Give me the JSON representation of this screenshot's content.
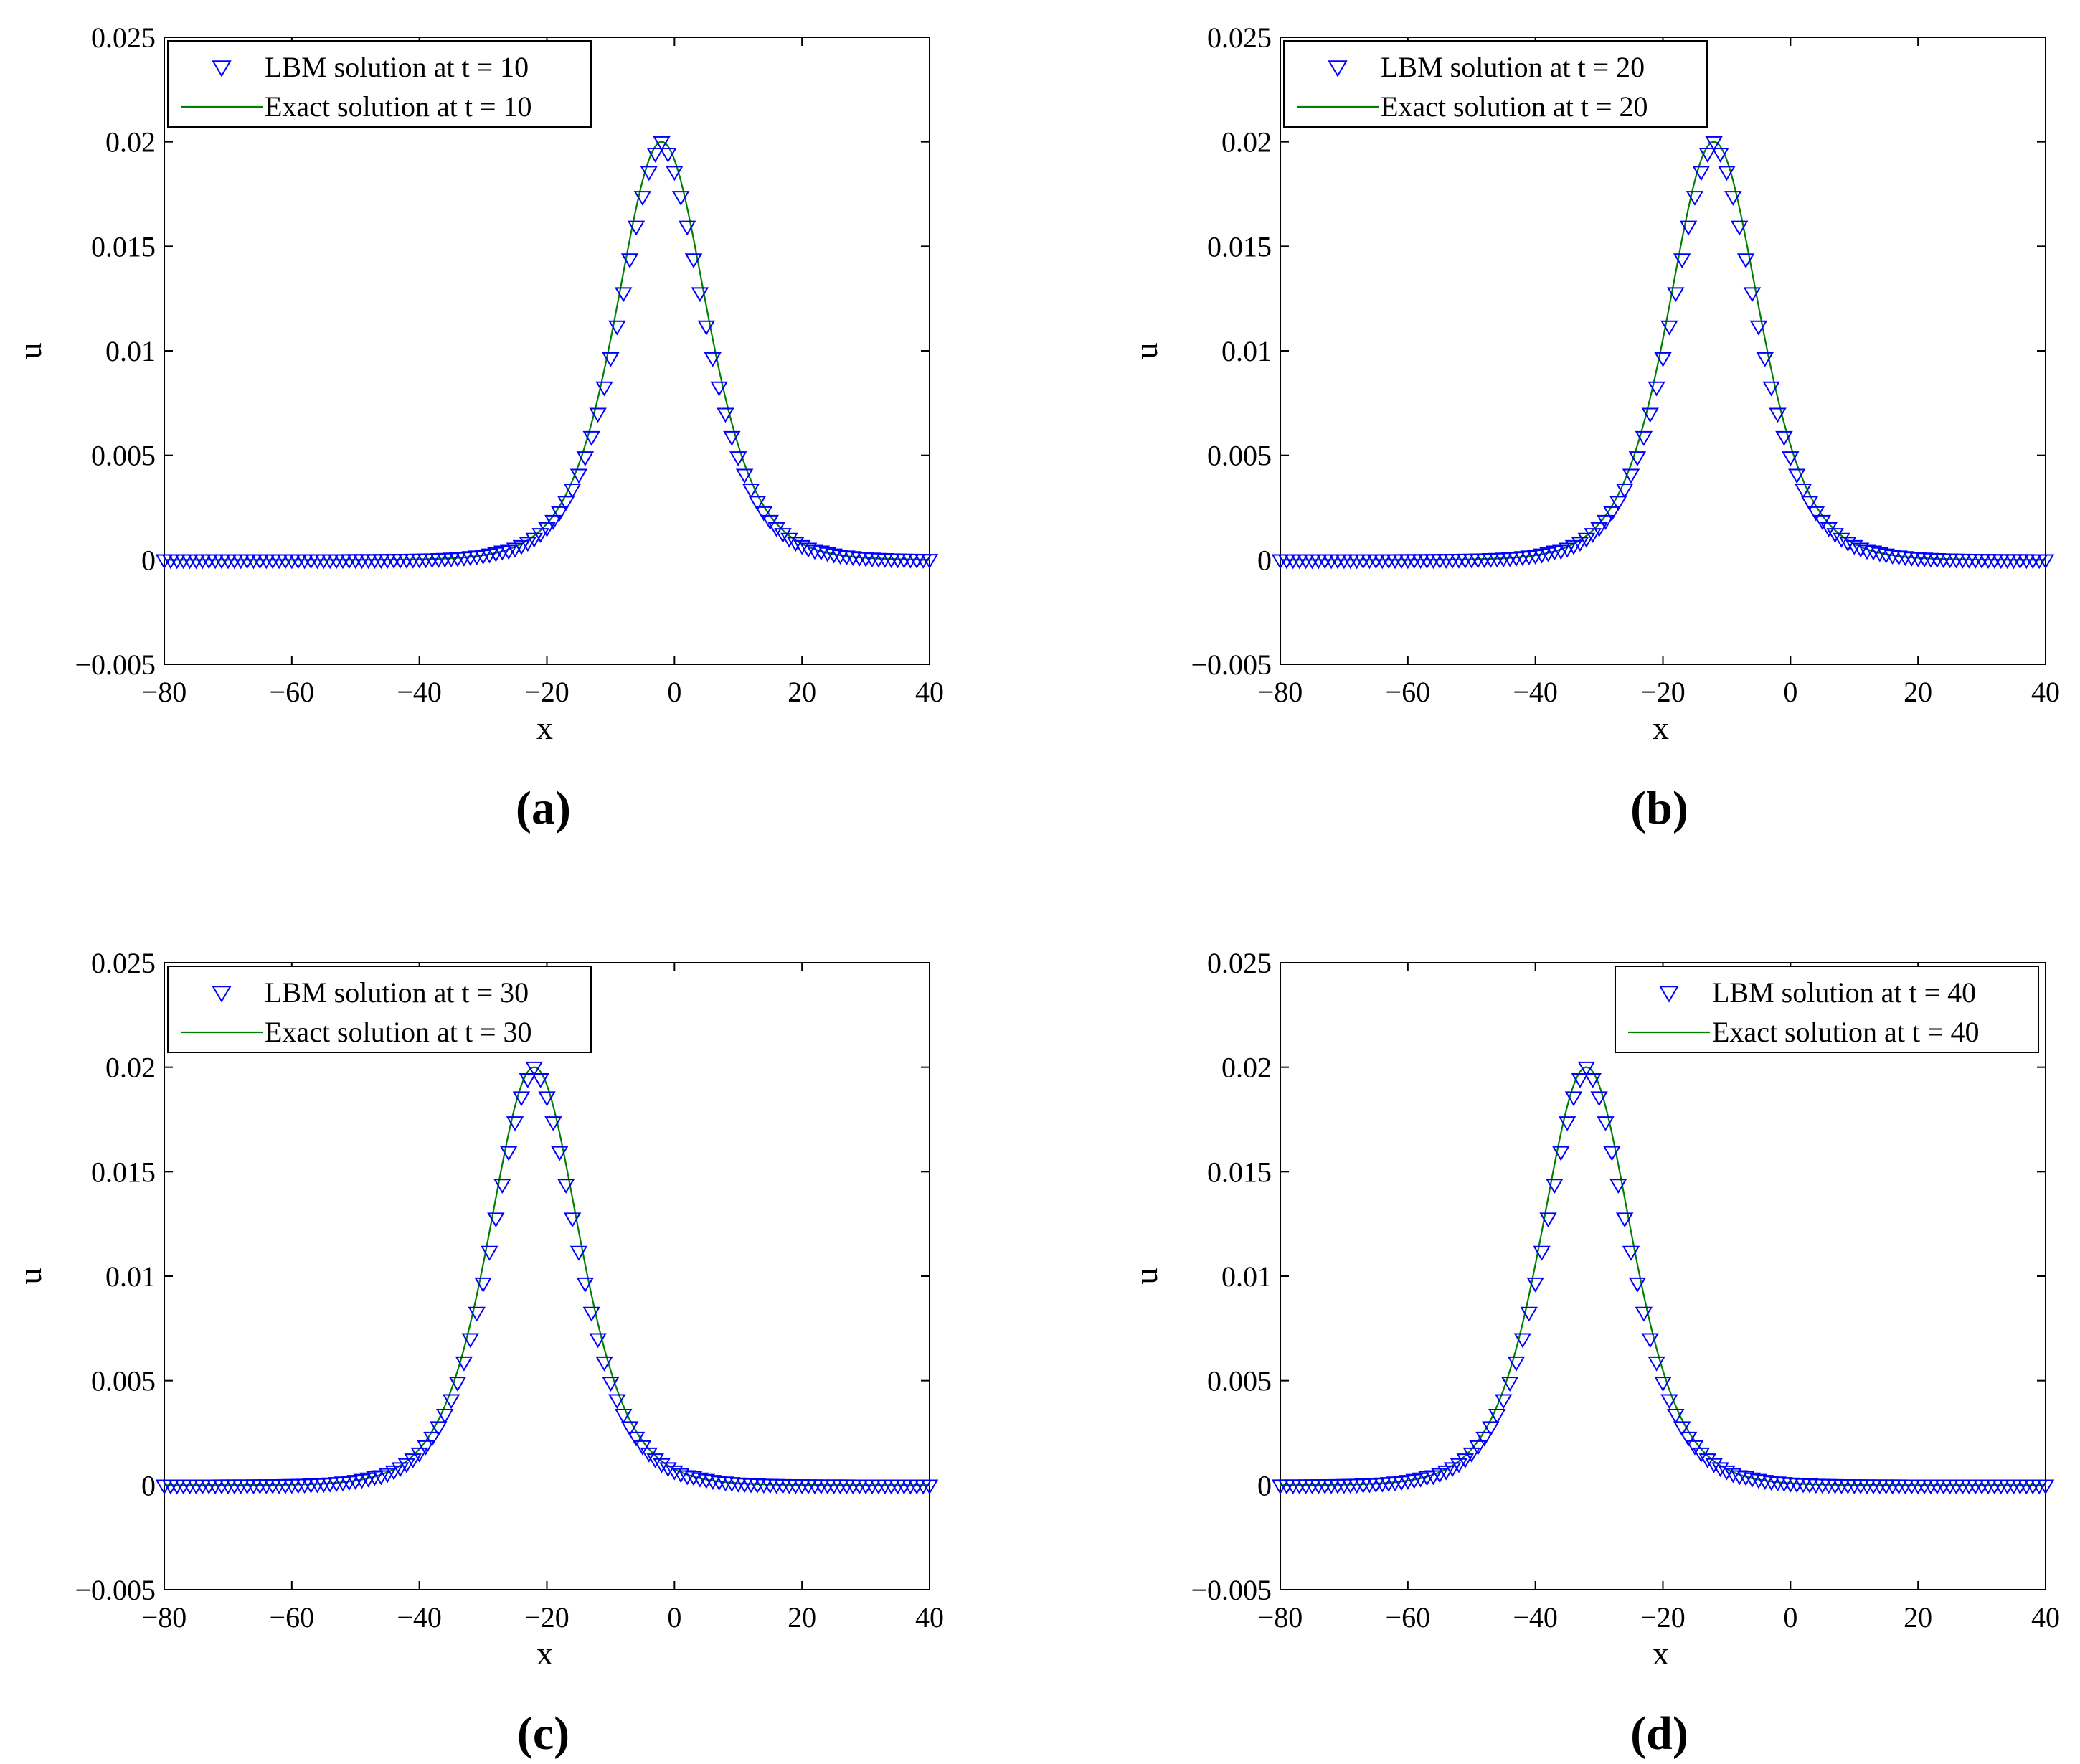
{
  "figure": {
    "panels": [
      {
        "label": "(a)",
        "t": 10,
        "peak_x": -2
      },
      {
        "label": "(b)",
        "t": 20,
        "peak_x": -12
      },
      {
        "label": "(c)",
        "t": 30,
        "peak_x": -22
      },
      {
        "label": "(d)",
        "t": 40,
        "peak_x": -32
      }
    ]
  },
  "colors": {
    "marker": "#0000ff",
    "line": "#008000",
    "axes": "#000000",
    "background": "#ffffff"
  },
  "chart_data": [
    {
      "type": "line",
      "panel": "(a)",
      "xlabel": "x",
      "ylabel": "u",
      "xlim": [
        -80,
        40
      ],
      "ylim": [
        -0.005,
        0.025
      ],
      "x_ticks": [
        -80,
        -60,
        -40,
        -20,
        0,
        20,
        40
      ],
      "x_tick_labels": [
        "−80",
        "−60",
        "−40",
        "−20",
        "0",
        "20",
        "40"
      ],
      "y_ticks": [
        -0.005,
        0,
        0.005,
        0.01,
        0.015,
        0.02,
        0.025
      ],
      "y_tick_labels": [
        "−0.005",
        "0",
        "0.005",
        "0.01",
        "0.015",
        "0.02",
        "0.025"
      ],
      "grid": false,
      "legend_position": "top-left",
      "series": [
        {
          "name": "LBM solution at t = 10",
          "style": "blue downward-triangle markers",
          "peak_x": -2,
          "peak_u": 0.02
        },
        {
          "name": "Exact solution at t = 10",
          "style": "green solid line",
          "peak_x": -2,
          "peak_u": 0.02
        }
      ]
    },
    {
      "type": "line",
      "panel": "(b)",
      "xlabel": "x",
      "ylabel": "u",
      "xlim": [
        -80,
        40
      ],
      "ylim": [
        -0.005,
        0.025
      ],
      "x_ticks": [
        -80,
        -60,
        -40,
        -20,
        0,
        20,
        40
      ],
      "x_tick_labels": [
        "−80",
        "−60",
        "−40",
        "−20",
        "0",
        "20",
        "40"
      ],
      "y_ticks": [
        -0.005,
        0,
        0.005,
        0.01,
        0.015,
        0.02,
        0.025
      ],
      "y_tick_labels": [
        "−0.005",
        "0",
        "0.005",
        "0.01",
        "0.015",
        "0.02",
        "0.025"
      ],
      "grid": false,
      "legend_position": "top-left",
      "series": [
        {
          "name": "LBM solution at t = 20",
          "style": "blue downward-triangle markers",
          "peak_x": -12,
          "peak_u": 0.02
        },
        {
          "name": "Exact solution at t = 20",
          "style": "green solid line",
          "peak_x": -12,
          "peak_u": 0.02
        }
      ]
    },
    {
      "type": "line",
      "panel": "(c)",
      "xlabel": "x",
      "ylabel": "u",
      "xlim": [
        -80,
        40
      ],
      "ylim": [
        -0.005,
        0.025
      ],
      "x_ticks": [
        -80,
        -60,
        -40,
        -20,
        0,
        20,
        40
      ],
      "x_tick_labels": [
        "−80",
        "−60",
        "−40",
        "−20",
        "0",
        "20",
        "40"
      ],
      "y_ticks": [
        -0.005,
        0,
        0.005,
        0.01,
        0.015,
        0.02,
        0.025
      ],
      "y_tick_labels": [
        "−0.005",
        "0",
        "0.005",
        "0.01",
        "0.015",
        "0.02",
        "0.025"
      ],
      "grid": false,
      "legend_position": "top-left",
      "series": [
        {
          "name": "LBM solution at t = 30",
          "style": "blue downward-triangle markers",
          "peak_x": -22,
          "peak_u": 0.02
        },
        {
          "name": "Exact solution at t = 30",
          "style": "green solid line",
          "peak_x": -22,
          "peak_u": 0.02
        }
      ]
    },
    {
      "type": "line",
      "panel": "(d)",
      "xlabel": "x",
      "ylabel": "u",
      "xlim": [
        -80,
        40
      ],
      "ylim": [
        -0.005,
        0.025
      ],
      "x_ticks": [
        -80,
        -60,
        -40,
        -20,
        0,
        20,
        40
      ],
      "x_tick_labels": [
        "−80",
        "−60",
        "−40",
        "−20",
        "0",
        "20",
        "40"
      ],
      "y_ticks": [
        -0.005,
        0,
        0.005,
        0.01,
        0.015,
        0.02,
        0.025
      ],
      "y_tick_labels": [
        "−0.005",
        "0",
        "0.005",
        "0.01",
        "0.015",
        "0.02",
        "0.025"
      ],
      "grid": false,
      "legend_position": "top-right",
      "series": [
        {
          "name": "LBM solution at t = 40",
          "style": "blue downward-triangle markers",
          "peak_x": -32,
          "peak_u": 0.02
        },
        {
          "name": "Exact solution at t = 40",
          "style": "green solid line",
          "peak_x": -32,
          "peak_u": 0.02
        }
      ]
    }
  ]
}
